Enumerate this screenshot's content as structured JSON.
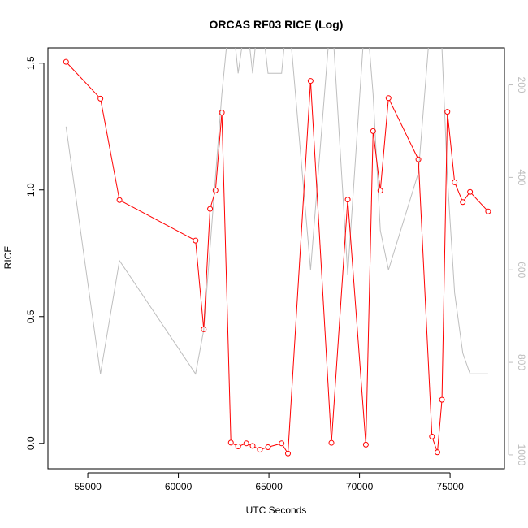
{
  "chart_data": {
    "type": "line",
    "title": "ORCAS RF03 RICE (Log)",
    "xlabel": "UTC Seconds",
    "ylabel": "RICE",
    "xlim": [
      52800,
      78000
    ],
    "ylim": [
      -0.1,
      1.56
    ],
    "x_ticks": [
      55000,
      60000,
      65000,
      70000,
      75000
    ],
    "y_ticks": [
      0.0,
      0.5,
      1.0,
      1.5
    ],
    "y_tick_labels": [
      "0.0",
      "0.5",
      "1.0",
      "1.5"
    ],
    "right_axis": {
      "ylim": [
        1030,
        120
      ],
      "ticks": [
        200,
        400,
        600,
        800,
        1000
      ],
      "color": "#bebebe"
    },
    "grid": false,
    "series": [
      {
        "color": "#ff0000",
        "marker": "open-circle",
        "x": [
          53800,
          55700,
          56750,
          60950,
          61400,
          61750,
          62050,
          62400,
          62900,
          63300,
          63750,
          64100,
          64500,
          64950,
          65700,
          66050,
          67300,
          68450,
          69350,
          70350,
          70750,
          71150,
          71600,
          73250,
          74000,
          74300,
          74550,
          74850,
          75250,
          75700,
          76100,
          77100
        ],
        "y": [
          1.505,
          1.36,
          0.96,
          0.8,
          0.45,
          0.925,
          0.998,
          1.305,
          0.003,
          -0.012,
          0.0,
          -0.01,
          -0.025,
          -0.015,
          0.0,
          -0.04,
          1.43,
          0.002,
          0.962,
          -0.005,
          1.232,
          0.997,
          1.362,
          1.12,
          0.027,
          -0.035,
          0.172,
          1.308,
          1.03,
          0.952,
          0.992,
          0.915
        ]
      },
      {
        "color": "#bebebe",
        "marker": "none",
        "axis": "right",
        "x": [
          53800,
          55700,
          56750,
          60950,
          61400,
          62400,
          62900,
          63300,
          63750,
          64100,
          64500,
          64950,
          65700,
          66050,
          67300,
          68450,
          69350,
          70350,
          70750,
          71150,
          71600,
          73250,
          74000,
          74550,
          74850,
          75250,
          75700,
          76100,
          77100
        ],
        "y": [
          290,
          825,
          580,
          825,
          730,
          220,
          20,
          175,
          50,
          175,
          20,
          175,
          175,
          30,
          600,
          30,
          610,
          25,
          220,
          515,
          600,
          390,
          20,
          120,
          400,
          650,
          780,
          825,
          825
        ]
      }
    ]
  }
}
